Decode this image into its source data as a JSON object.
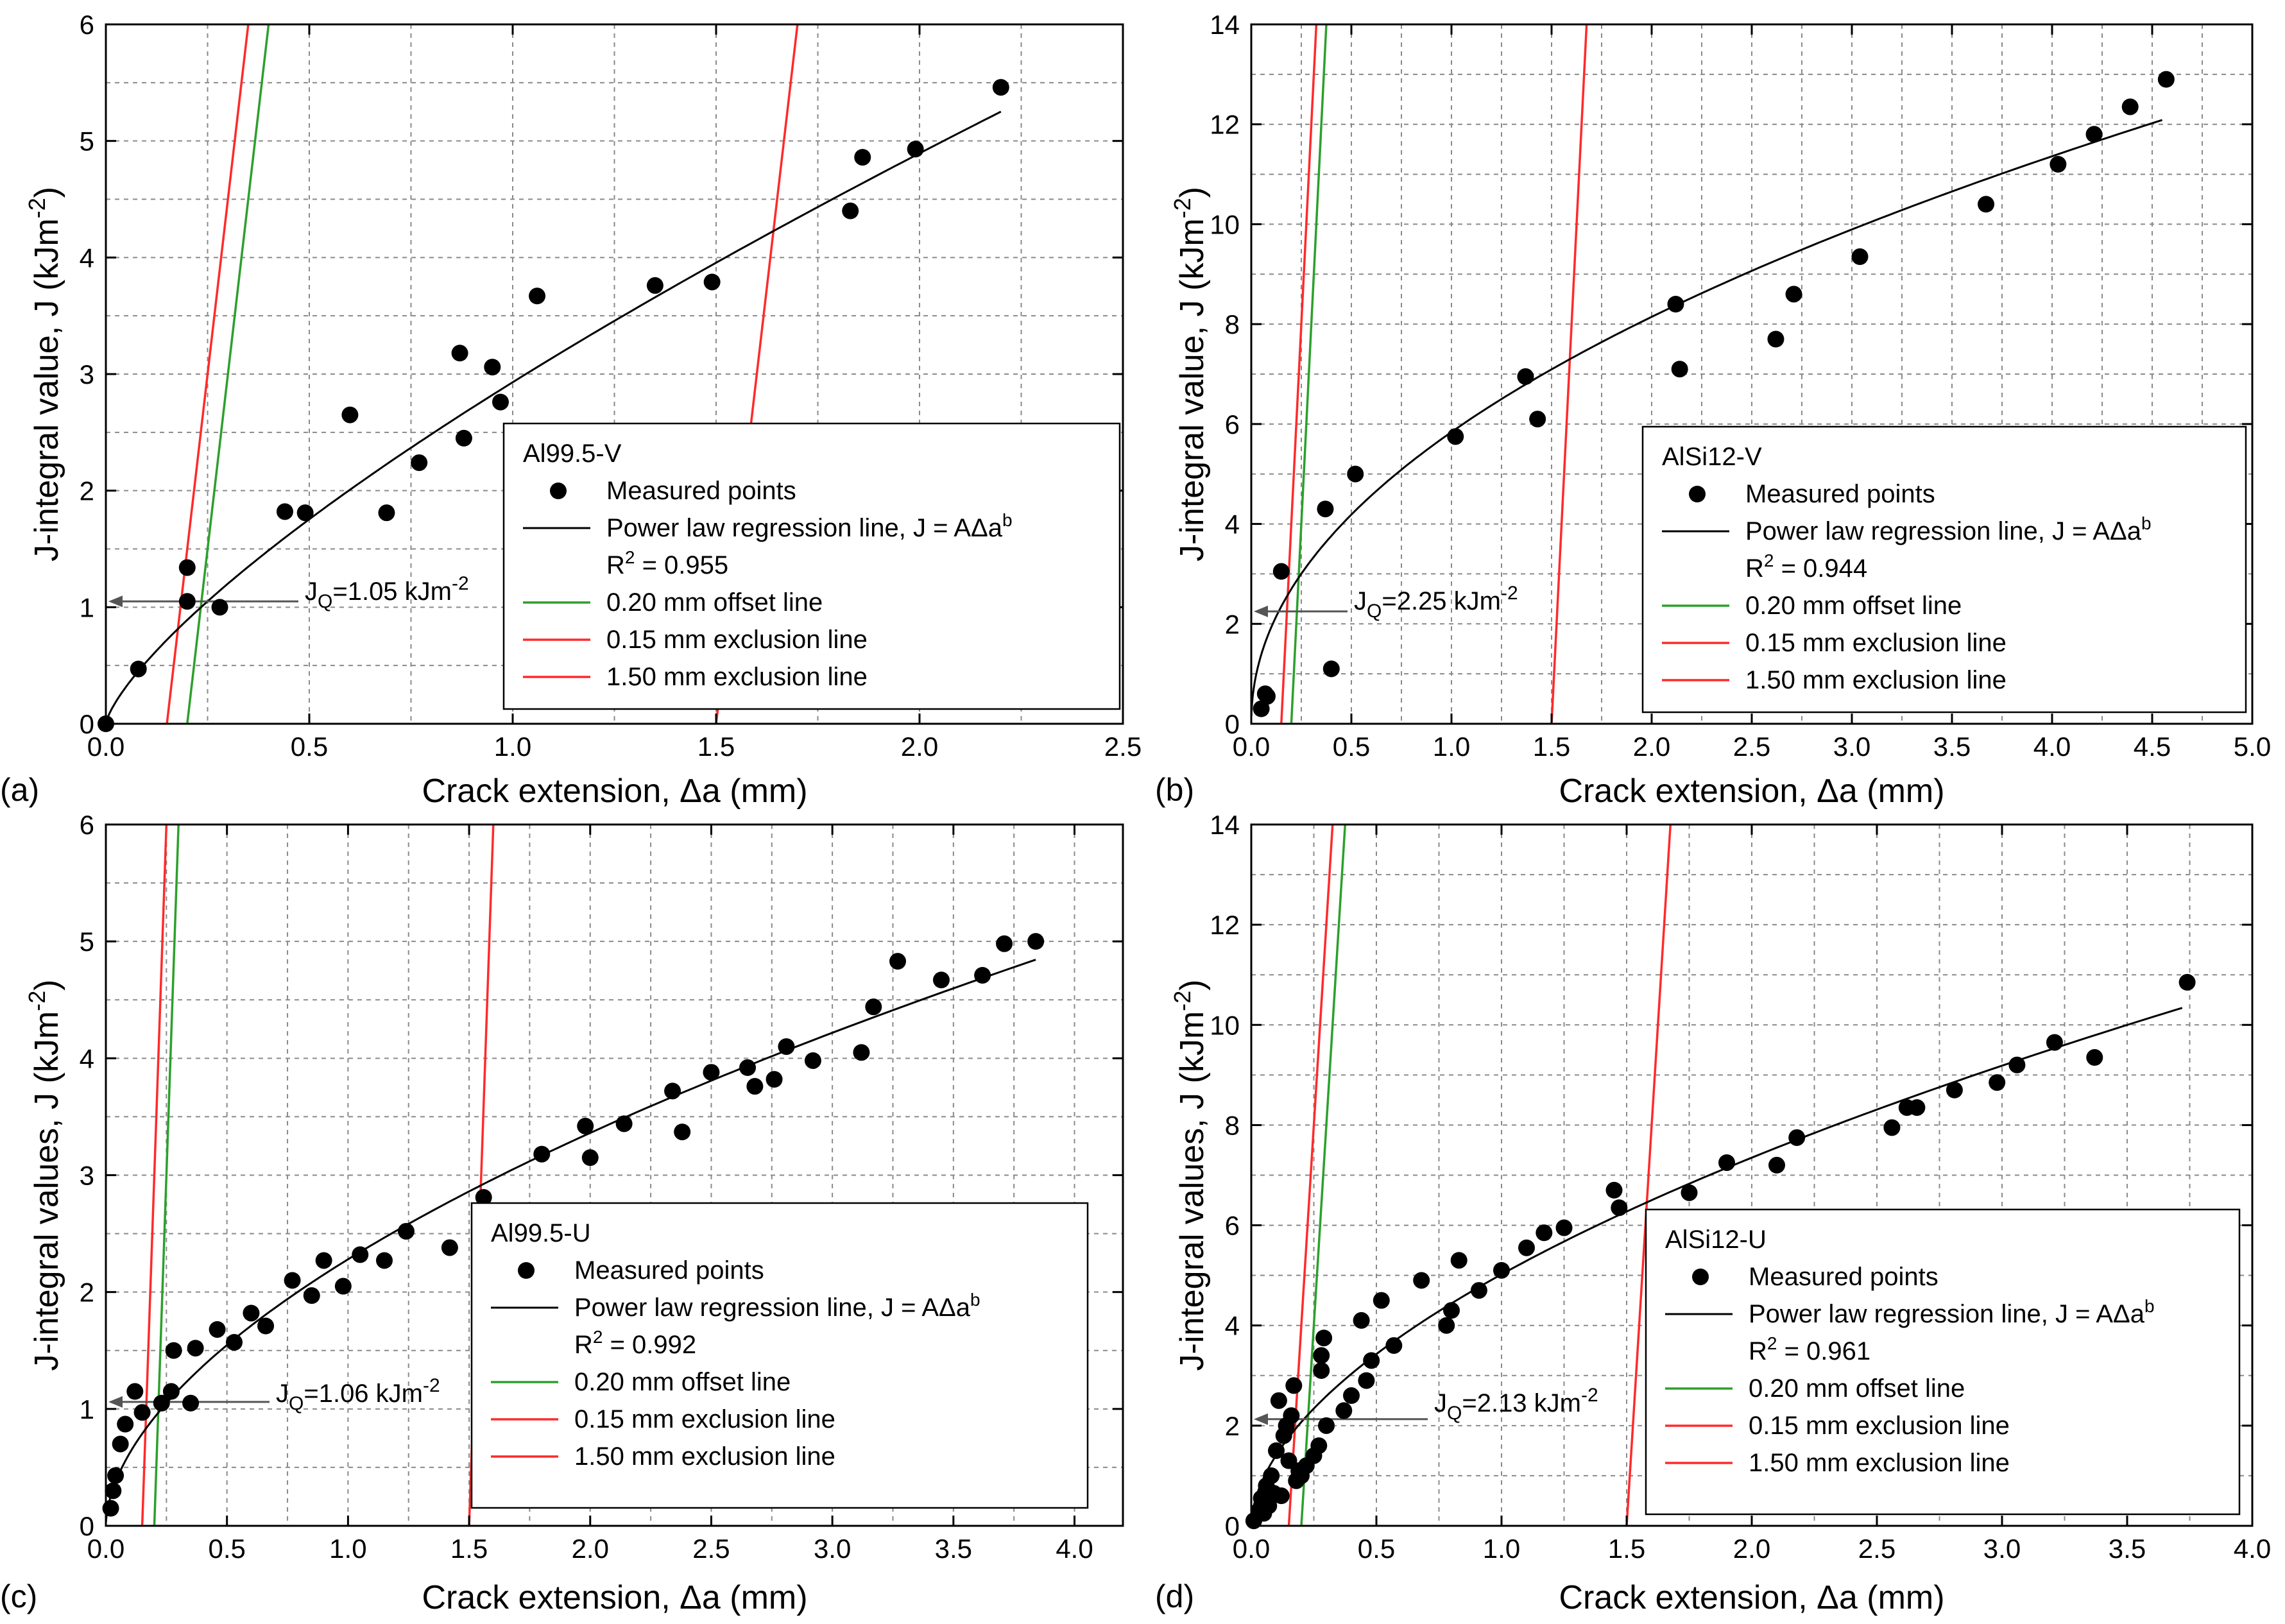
{
  "figure": {
    "colors": {
      "measured": "#000000",
      "regression": "#000000",
      "offset": "#2ca02c",
      "exclusion": "#ff2a2a"
    }
  },
  "chart_data": [
    {
      "type": "scatter",
      "panel_label": "(a)",
      "material": "Al99.5-V",
      "xlabel": "Crack extension, Δa (mm)",
      "ylabel": "J-integral value, J (kJm",
      "ylabel_sup": "-2",
      "ylabel_close": ")",
      "xlim": [
        0,
        2.5
      ],
      "ylim": [
        0,
        6
      ],
      "xticks": [
        0,
        0.5,
        1,
        1.5,
        2,
        2.5
      ],
      "xtick_labels": [
        "0.0",
        "0.5",
        "1.0",
        "1.5",
        "2.0",
        "2.5"
      ],
      "yticks": [
        0,
        1,
        2,
        3,
        4,
        5,
        6
      ],
      "ytick_labels": [
        "0",
        "1",
        "2",
        "3",
        "4",
        "5",
        "6"
      ],
      "points": [
        [
          0.0,
          0.0
        ],
        [
          0.08,
          0.47
        ],
        [
          0.2,
          1.34
        ],
        [
          0.2,
          1.05
        ],
        [
          0.28,
          1.0
        ],
        [
          0.44,
          1.82
        ],
        [
          0.49,
          1.81
        ],
        [
          0.6,
          2.65
        ],
        [
          0.69,
          1.81
        ],
        [
          0.77,
          2.24
        ],
        [
          0.87,
          3.18
        ],
        [
          0.88,
          2.45
        ],
        [
          0.95,
          3.06
        ],
        [
          0.97,
          2.76
        ],
        [
          1.06,
          3.67
        ],
        [
          1.35,
          3.76
        ],
        [
          1.49,
          3.79
        ],
        [
          1.83,
          4.4
        ],
        [
          1.86,
          4.86
        ],
        [
          1.99,
          4.93
        ],
        [
          2.2,
          5.46
        ]
      ],
      "power_law": {
        "A": 2.93,
        "b": 0.74,
        "x_max": 2.2
      },
      "offset_line": {
        "slope": 30,
        "intercept_x": 0.2
      },
      "exclusion_lines": [
        0.15,
        1.5
      ],
      "jq_value": 1.05,
      "jq_label": "J",
      "jq_sub": "Q",
      "jq_rest": "=1.05 kJm",
      "jq_sup": "-2",
      "legend": {
        "title": "Al99.5-V",
        "measured": "Measured points",
        "regression": "Power law regression line, J = AΔa",
        "regression_sup": "b",
        "r2_prefix": "R",
        "r2_sup": "2",
        "r2_value": " = 0.955",
        "offset": "0.20 mm offset line",
        "excl_low": "0.15 mm exclusion line",
        "excl_high": "1.50 mm exclusion line"
      }
    },
    {
      "type": "scatter",
      "panel_label": "(b)",
      "material": "AlSi12-V",
      "xlabel": "Crack extension, Δa (mm)",
      "ylabel": "J-integral value, J (kJm",
      "ylabel_sup": "-2",
      "ylabel_close": ")",
      "xlim": [
        0,
        5
      ],
      "ylim": [
        0,
        14
      ],
      "xticks": [
        0,
        0.5,
        1,
        1.5,
        2,
        2.5,
        3,
        3.5,
        4,
        4.5,
        5
      ],
      "xtick_labels": [
        "0.0",
        "0.5",
        "1.0",
        "1.5",
        "2.0",
        "2.5",
        "3.0",
        "3.5",
        "4.0",
        "4.5",
        "5.0"
      ],
      "yticks": [
        0,
        2,
        4,
        6,
        8,
        10,
        12,
        14
      ],
      "ytick_labels": [
        "0",
        "2",
        "4",
        "6",
        "8",
        "10",
        "12",
        "14"
      ],
      "points": [
        [
          0.05,
          0.3
        ],
        [
          0.07,
          0.6
        ],
        [
          0.08,
          0.55
        ],
        [
          0.15,
          3.05
        ],
        [
          0.37,
          4.3
        ],
        [
          0.4,
          1.1
        ],
        [
          0.52,
          5.0
        ],
        [
          1.02,
          5.75
        ],
        [
          1.37,
          6.95
        ],
        [
          1.43,
          6.1
        ],
        [
          2.12,
          8.4
        ],
        [
          2.14,
          7.1
        ],
        [
          2.62,
          7.7
        ],
        [
          2.71,
          8.6
        ],
        [
          3.04,
          9.35
        ],
        [
          3.67,
          10.4
        ],
        [
          4.03,
          11.2
        ],
        [
          4.21,
          11.8
        ],
        [
          4.39,
          12.35
        ],
        [
          4.57,
          12.9
        ]
      ],
      "power_law": {
        "A": 5.84,
        "b": 0.48,
        "x_max": 4.55
      },
      "offset_line": {
        "slope": 80,
        "intercept_x": 0.2
      },
      "exclusion_lines": [
        0.15,
        1.5
      ],
      "jq_value": 2.25,
      "jq_label": "J",
      "jq_sub": "Q",
      "jq_rest": "=2.25 kJm",
      "jq_sup": "-2",
      "legend": {
        "title": "AlSi12-V",
        "measured": "Measured points",
        "regression": "Power law regression line, J = AΔa",
        "regression_sup": "b",
        "r2_prefix": "R",
        "r2_sup": "2",
        "r2_value": " = 0.944",
        "offset": "0.20 mm offset line",
        "excl_low": "0.15 mm exclusion line",
        "excl_high": "1.50 mm exclusion line"
      }
    },
    {
      "type": "scatter",
      "panel_label": "(c)",
      "material": "Al99.5-U",
      "xlabel": "Crack extension, Δa (mm)",
      "ylabel": "J-integral values, J (kJm",
      "ylabel_sup": "-2",
      "ylabel_close": ")",
      "xlim": [
        0,
        4.2
      ],
      "ylim": [
        0,
        6
      ],
      "xticks": [
        0,
        0.5,
        1,
        1.5,
        2,
        2.5,
        3,
        3.5,
        4
      ],
      "xtick_labels": [
        "0.0",
        "0.5",
        "1.0",
        "1.5",
        "2.0",
        "2.5",
        "3.0",
        "3.5",
        "4.0"
      ],
      "yticks": [
        0,
        1,
        2,
        3,
        4,
        5,
        6
      ],
      "ytick_labels": [
        "0",
        "1",
        "2",
        "3",
        "4",
        "5",
        "6"
      ],
      "points": [
        [
          0.02,
          0.15
        ],
        [
          0.03,
          0.3
        ],
        [
          0.04,
          0.43
        ],
        [
          0.06,
          0.7
        ],
        [
          0.08,
          0.87
        ],
        [
          0.12,
          1.15
        ],
        [
          0.15,
          0.97
        ],
        [
          0.23,
          1.05
        ],
        [
          0.27,
          1.15
        ],
        [
          0.28,
          1.5
        ],
        [
          0.35,
          1.05
        ],
        [
          0.37,
          1.52
        ],
        [
          0.46,
          1.68
        ],
        [
          0.53,
          1.57
        ],
        [
          0.6,
          1.82
        ],
        [
          0.66,
          1.71
        ],
        [
          0.77,
          2.1
        ],
        [
          0.85,
          1.97
        ],
        [
          0.9,
          2.27
        ],
        [
          0.98,
          2.05
        ],
        [
          1.05,
          2.32
        ],
        [
          1.15,
          2.27
        ],
        [
          1.24,
          2.52
        ],
        [
          1.42,
          2.38
        ],
        [
          1.56,
          2.81
        ],
        [
          1.8,
          3.18
        ],
        [
          1.98,
          3.42
        ],
        [
          2.0,
          3.15
        ],
        [
          2.14,
          3.44
        ],
        [
          2.34,
          3.72
        ],
        [
          2.38,
          3.37
        ],
        [
          2.5,
          3.88
        ],
        [
          2.65,
          3.92
        ],
        [
          2.68,
          3.76
        ],
        [
          2.76,
          3.82
        ],
        [
          2.81,
          4.1
        ],
        [
          2.92,
          3.98
        ],
        [
          3.12,
          4.05
        ],
        [
          3.17,
          4.44
        ],
        [
          3.27,
          4.83
        ],
        [
          3.45,
          4.67
        ],
        [
          3.62,
          4.71
        ],
        [
          3.71,
          4.98
        ],
        [
          3.84,
          5.0
        ]
      ],
      "power_law": {
        "A": 2.28,
        "b": 0.56,
        "x_max": 3.84
      },
      "offset_line": {
        "slope": 60,
        "intercept_x": 0.2
      },
      "exclusion_lines": [
        0.15,
        1.5
      ],
      "jq_value": 1.06,
      "jq_label": "J",
      "jq_sub": "Q",
      "jq_rest": "=1.06 kJm",
      "jq_sup": "-2",
      "legend": {
        "title": "Al99.5-U",
        "measured": "Measured points",
        "regression": "Power law regression line, J = AΔa",
        "regression_sup": "b",
        "r2_prefix": "R",
        "r2_sup": "2",
        "r2_value": " = 0.992",
        "offset": "0.20 mm offset line",
        "excl_low": "0.15 mm exclusion line",
        "excl_high": "1.50 mm exclusion line"
      }
    },
    {
      "type": "scatter",
      "panel_label": "(d)",
      "material": "AlSi12-U",
      "xlabel": "Crack extension, Δa (mm)",
      "ylabel": "J-integral values, J (kJm",
      "ylabel_sup": "-2",
      "ylabel_close": ")",
      "xlim": [
        0,
        4
      ],
      "ylim": [
        0,
        14
      ],
      "xticks": [
        0,
        0.5,
        1,
        1.5,
        2,
        2.5,
        3,
        3.5,
        4
      ],
      "xtick_labels": [
        "0.0",
        "0.5",
        "1.0",
        "1.5",
        "2.0",
        "2.5",
        "3.0",
        "3.5",
        "4.0"
      ],
      "yticks": [
        0,
        2,
        4,
        6,
        8,
        10,
        12,
        14
      ],
      "ytick_labels": [
        "0",
        "2",
        "4",
        "6",
        "8",
        "10",
        "12",
        "14"
      ],
      "points": [
        [
          0.01,
          0.1
        ],
        [
          0.03,
          0.3
        ],
        [
          0.04,
          0.55
        ],
        [
          0.05,
          0.25
        ],
        [
          0.06,
          0.8
        ],
        [
          0.07,
          0.4
        ],
        [
          0.08,
          1.0
        ],
        [
          0.09,
          0.65
        ],
        [
          0.1,
          1.5
        ],
        [
          0.11,
          2.5
        ],
        [
          0.12,
          0.6
        ],
        [
          0.13,
          1.8
        ],
        [
          0.14,
          2.0
        ],
        [
          0.15,
          1.3
        ],
        [
          0.16,
          2.2
        ],
        [
          0.17,
          2.8
        ],
        [
          0.18,
          0.9
        ],
        [
          0.19,
          1.1
        ],
        [
          0.2,
          1.0
        ],
        [
          0.22,
          1.2
        ],
        [
          0.25,
          1.4
        ],
        [
          0.27,
          1.6
        ],
        [
          0.28,
          3.1
        ],
        [
          0.28,
          3.4
        ],
        [
          0.29,
          3.75
        ],
        [
          0.3,
          2.0
        ],
        [
          0.37,
          2.3
        ],
        [
          0.4,
          2.6
        ],
        [
          0.44,
          4.1
        ],
        [
          0.46,
          2.9
        ],
        [
          0.48,
          3.3
        ],
        [
          0.52,
          4.5
        ],
        [
          0.57,
          3.6
        ],
        [
          0.68,
          4.9
        ],
        [
          0.78,
          4.0
        ],
        [
          0.8,
          4.3
        ],
        [
          0.83,
          5.3
        ],
        [
          0.91,
          4.7
        ],
        [
          1.0,
          5.1
        ],
        [
          1.1,
          5.55
        ],
        [
          1.17,
          5.85
        ],
        [
          1.25,
          5.95
        ],
        [
          1.45,
          6.7
        ],
        [
          1.47,
          6.35
        ],
        [
          1.75,
          6.65
        ],
        [
          1.9,
          7.25
        ],
        [
          2.1,
          7.2
        ],
        [
          2.18,
          7.75
        ],
        [
          2.56,
          7.95
        ],
        [
          2.62,
          8.35
        ],
        [
          2.66,
          8.35
        ],
        [
          2.81,
          8.7
        ],
        [
          2.98,
          8.85
        ],
        [
          3.06,
          9.2
        ],
        [
          3.21,
          9.65
        ],
        [
          3.37,
          9.35
        ],
        [
          3.74,
          10.85
        ]
      ],
      "power_law": {
        "A": 5.02,
        "b": 0.55,
        "x_max": 3.72
      },
      "offset_line": {
        "slope": 80,
        "intercept_x": 0.2
      },
      "exclusion_lines": [
        0.15,
        1.5
      ],
      "jq_value": 2.13,
      "jq_label": "J",
      "jq_sub": "Q",
      "jq_rest": "=2.13 kJm",
      "jq_sup": "-2",
      "legend": {
        "title": "AlSi12-U",
        "measured": "Measured points",
        "regression": "Power law regression line, J = AΔa",
        "regression_sup": "b",
        "r2_prefix": "R",
        "r2_sup": "2",
        "r2_value": " = 0.961",
        "offset": "0.20 mm offset line",
        "excl_low": "0.15 mm exclusion line",
        "excl_high": "1.50 mm exclusion line"
      }
    }
  ]
}
